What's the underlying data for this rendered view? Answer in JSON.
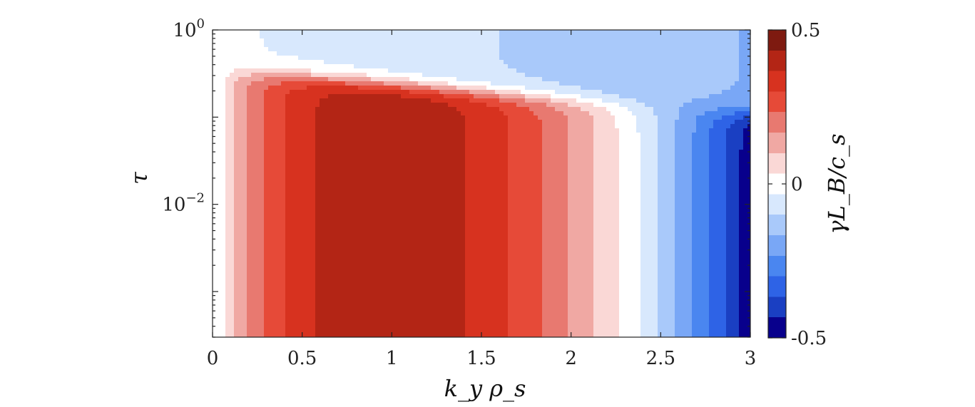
{
  "chart_data": {
    "type": "heatmap",
    "plot_kind": "filled-contour",
    "xlabel": "k_y ρ_s",
    "ylabel": "τ",
    "xlim": [
      0,
      3
    ],
    "ylim": [
      0.0003,
      1
    ],
    "y_scale": "log",
    "x_ticks": [
      "0",
      "0.5",
      "1",
      "1.5",
      "2",
      "2.5",
      "3"
    ],
    "y_ticks": [
      {
        "value": 1,
        "label_base": "10",
        "label_exp": "0"
      },
      {
        "value": 0.01,
        "label_base": "10",
        "label_exp": "−2"
      }
    ],
    "colorbar": {
      "label": "γL_B/c_s",
      "range": [
        -0.5,
        0.5
      ],
      "tick_labels": [
        "0.5",
        "0",
        "-0.5"
      ],
      "colormap": "blue-white-red diverging",
      "colors": [
        "#08008C",
        "#1A3FC2",
        "#2E63E6",
        "#4A86F0",
        "#79A7F6",
        "#A9C9FA",
        "#D8E8FD",
        "#FFFFFF",
        "#FAD8D6",
        "#F0A8A3",
        "#E87970",
        "#E64A38",
        "#D7321F",
        "#B32515",
        "#7E1A10"
      ]
    },
    "grid": false,
    "legend": "none",
    "features": {
      "growth_rate_peak": {
        "ky_rho_s": 1.15,
        "value": 0.45,
        "tau_upper_bound": 0.12
      },
      "zero_contour_at_small_tau": {
        "ky_rho_s": 2.4
      },
      "stabilization_boundary_tau": {
        "at_ky_0": 0.35,
        "at_ky_3": 0.11
      }
    }
  }
}
